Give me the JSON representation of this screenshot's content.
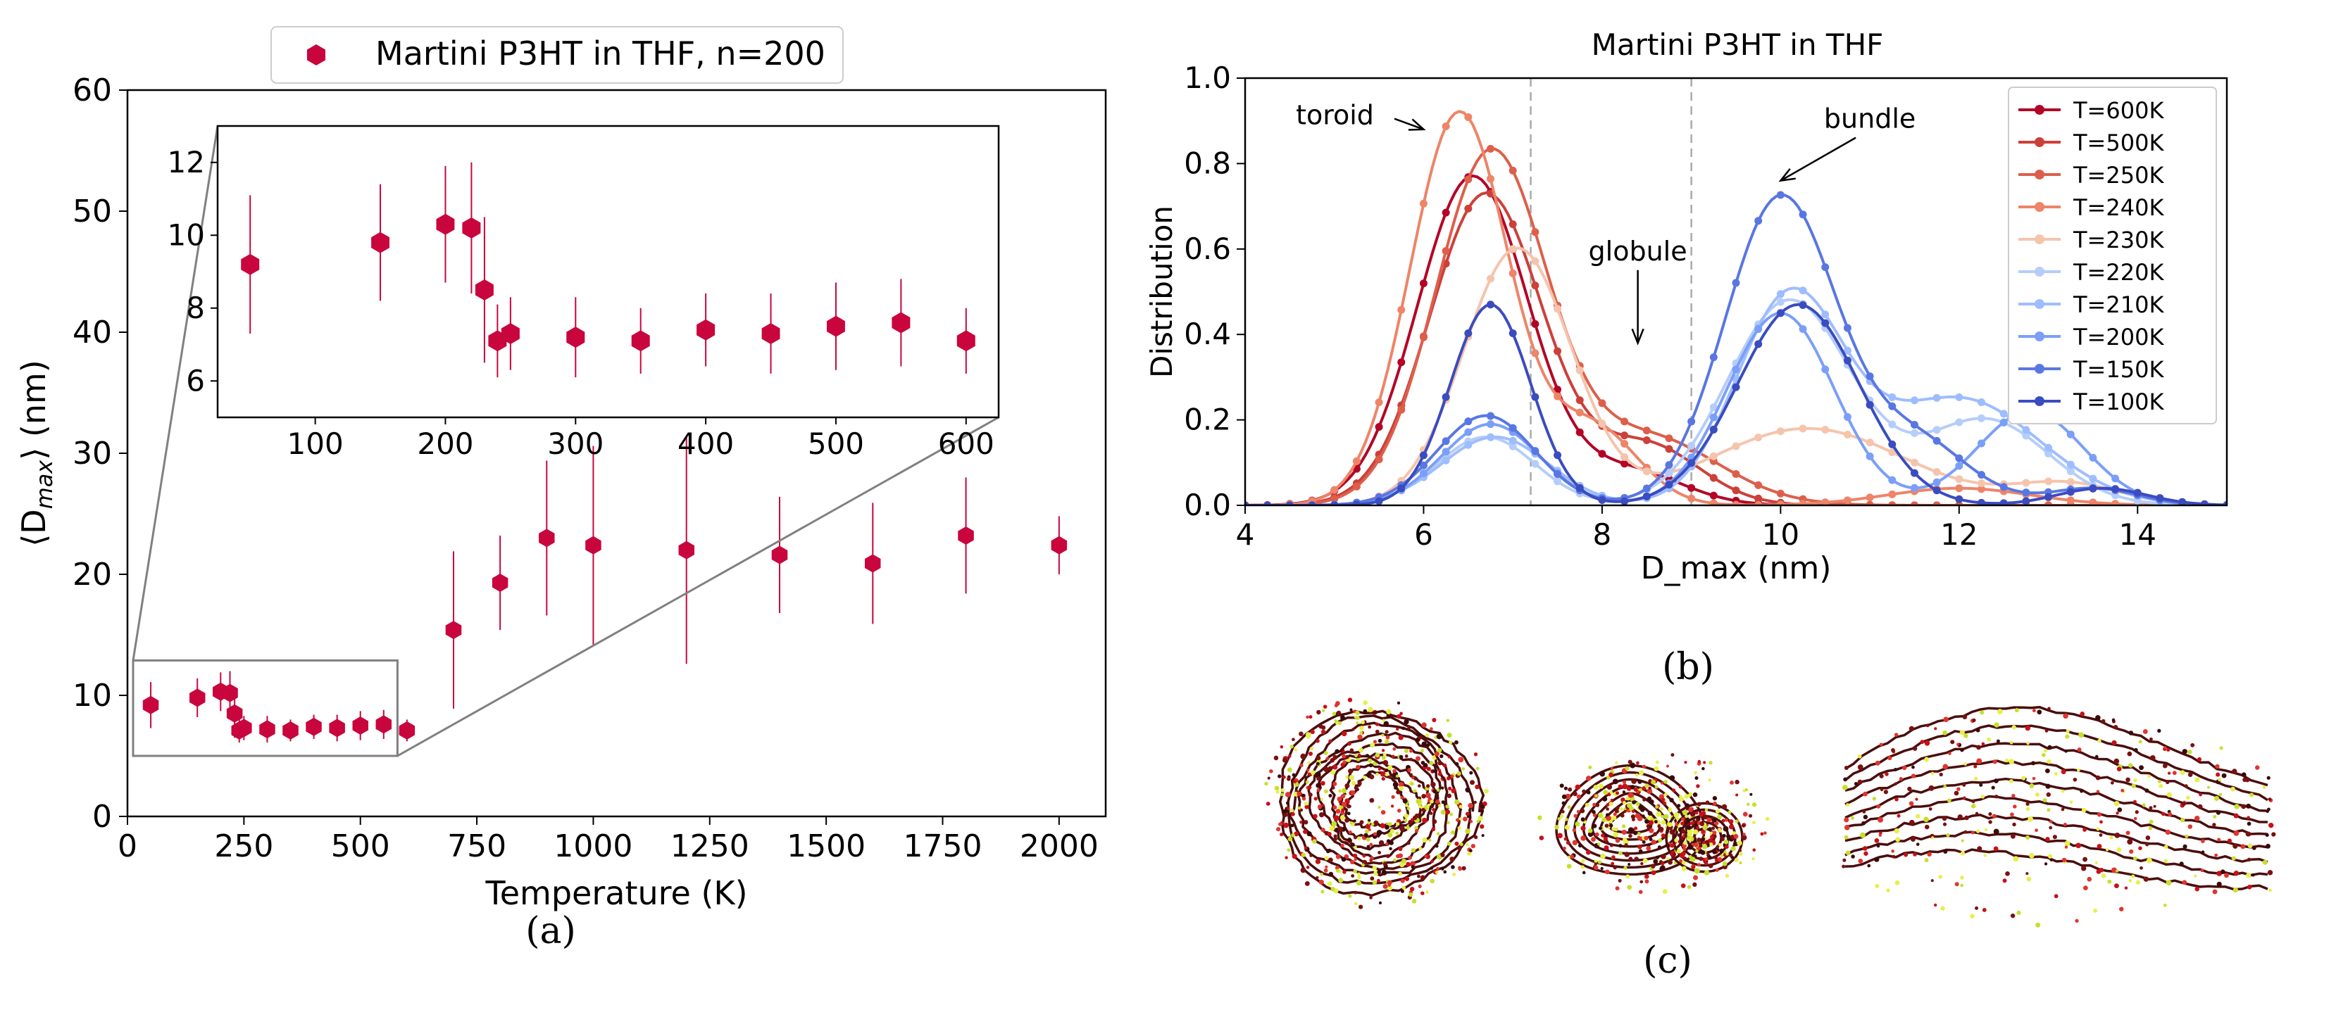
{
  "chart_data": [
    {
      "id": "a",
      "type": "scatter",
      "panel_label": "(a)",
      "legend_label": "Martini P3HT in THF, n=200",
      "xlabel": "Temperature (K)",
      "ylabel": "⟨D",
      "ylabel_sub": "max",
      "ylabel_tail": "⟩ (nm)",
      "xlim": [
        0,
        2100
      ],
      "ylim": [
        0,
        60
      ],
      "xticks": [
        0,
        250,
        500,
        750,
        1000,
        1250,
        1500,
        1750,
        2000
      ],
      "yticks": [
        0,
        10,
        20,
        30,
        40,
        50,
        60
      ],
      "marker_color": "#c8063d",
      "points": [
        {
          "x": 50,
          "y": 9.2,
          "err": 1.9
        },
        {
          "x": 150,
          "y": 9.8,
          "err": 1.6
        },
        {
          "x": 200,
          "y": 10.3,
          "err": 1.6
        },
        {
          "x": 220,
          "y": 10.2,
          "err": 1.8
        },
        {
          "x": 230,
          "y": 8.5,
          "err": 2.0
        },
        {
          "x": 240,
          "y": 7.1,
          "err": 1.0
        },
        {
          "x": 250,
          "y": 7.3,
          "err": 1.0
        },
        {
          "x": 300,
          "y": 7.2,
          "err": 1.1
        },
        {
          "x": 350,
          "y": 7.1,
          "err": 0.9
        },
        {
          "x": 400,
          "y": 7.4,
          "err": 1.0
        },
        {
          "x": 450,
          "y": 7.3,
          "err": 1.1
        },
        {
          "x": 500,
          "y": 7.5,
          "err": 1.2
        },
        {
          "x": 550,
          "y": 7.6,
          "err": 1.2
        },
        {
          "x": 600,
          "y": 7.1,
          "err": 0.9
        },
        {
          "x": 700,
          "y": 15.4,
          "err": 6.5
        },
        {
          "x": 800,
          "y": 19.3,
          "err": 3.9
        },
        {
          "x": 900,
          "y": 23.0,
          "err": 6.4
        },
        {
          "x": 1000,
          "y": 22.4,
          "err": 8.2
        },
        {
          "x": 1200,
          "y": 22.0,
          "err": 9.4
        },
        {
          "x": 1400,
          "y": 21.6,
          "err": 4.8
        },
        {
          "x": 1600,
          "y": 20.9,
          "err": 5.0
        },
        {
          "x": 1800,
          "y": 23.2,
          "err": 4.8
        },
        {
          "x": 2000,
          "y": 22.4,
          "err": 2.4
        }
      ],
      "inset": {
        "xlim": [
          25,
          625
        ],
        "ylim": [
          5,
          13
        ],
        "xticks": [
          100,
          200,
          300,
          400,
          500,
          600
        ],
        "yticks": [
          6,
          8,
          10,
          12
        ],
        "zoom_box": {
          "x0": 0,
          "x1": 625,
          "y0": 5,
          "y1": 13
        }
      }
    },
    {
      "id": "b",
      "type": "line",
      "panel_label": "(b)",
      "title": "Martini P3HT in THF",
      "xlabel": "D_max (nm)",
      "ylabel": "Distribution",
      "xlim": [
        4,
        15
      ],
      "ylim": [
        0,
        1.0
      ],
      "xticks": [
        4,
        6,
        8,
        10,
        12,
        14
      ],
      "yticks": [
        0.0,
        0.2,
        0.4,
        0.6,
        0.8,
        1.0
      ],
      "ytick_labels": [
        "0.0",
        "0.2",
        "0.4",
        "0.6",
        "0.8",
        "1.0"
      ],
      "vlines": [
        7.2,
        9.0
      ],
      "annotations": [
        {
          "text": "toroid",
          "x": 5.2,
          "y": 0.9,
          "arrow_to": [
            6.0,
            0.88
          ]
        },
        {
          "text": "globule",
          "x": 8.4,
          "y": 0.6,
          "arrow_to": [
            8.4,
            0.38
          ]
        },
        {
          "text": "bundle",
          "x": 11.0,
          "y": 0.91,
          "arrow_to": [
            10.0,
            0.76
          ]
        }
      ],
      "series": [
        {
          "name": "T=600K",
          "color": "#b40426",
          "comps": [
            [
              0.77,
              6.55,
              0.62
            ],
            [
              0.08,
              8.3,
              0.6
            ]
          ]
        },
        {
          "name": "T=500K",
          "color": "#cc403a",
          "comps": [
            [
              0.73,
              6.7,
              0.63
            ],
            [
              0.14,
              8.5,
              0.6
            ]
          ]
        },
        {
          "name": "T=250K",
          "color": "#dd5f4b",
          "comps": [
            [
              0.82,
              6.75,
              0.62
            ],
            [
              0.16,
              8.5,
              0.8
            ]
          ]
        },
        {
          "name": "T=240K",
          "color": "#ee8468",
          "comps": [
            [
              0.92,
              6.4,
              0.55
            ],
            [
              0.18,
              7.9,
              0.5
            ],
            [
              0.04,
              12.0,
              0.8
            ]
          ]
        },
        {
          "name": "T=230K",
          "color": "#f5c4ac",
          "comps": [
            [
              0.6,
              7.05,
              0.6
            ],
            [
              0.18,
              10.3,
              1.1
            ],
            [
              0.05,
              13.2,
              0.6
            ]
          ]
        },
        {
          "name": "T=220K",
          "color": "#b5cdfa",
          "comps": [
            [
              0.16,
              6.7,
              0.55
            ],
            [
              0.48,
              10.1,
              0.7
            ],
            [
              0.2,
              12.3,
              0.7
            ]
          ]
        },
        {
          "name": "T=210K",
          "color": "#9dbdff",
          "comps": [
            [
              0.16,
              6.8,
              0.6
            ],
            [
              0.48,
              10.1,
              0.6
            ],
            [
              0.25,
              12.0,
              0.9
            ]
          ]
        },
        {
          "name": "T=200K",
          "color": "#7b9ff9",
          "comps": [
            [
              0.19,
              6.75,
              0.55
            ],
            [
              0.45,
              10.0,
              0.6
            ],
            [
              0.22,
              12.8,
              0.6
            ]
          ]
        },
        {
          "name": "T=150K",
          "color": "#5977e3",
          "comps": [
            [
              0.21,
              6.7,
              0.55
            ],
            [
              0.72,
              10.0,
              0.62
            ],
            [
              0.15,
              11.5,
              0.6
            ],
            [
              0.04,
              13.5,
              0.5
            ]
          ]
        },
        {
          "name": "T=100K",
          "color": "#3b4cc0",
          "comps": [
            [
              0.47,
              6.75,
              0.45
            ],
            [
              0.47,
              10.2,
              0.68
            ],
            [
              0.04,
              13.6,
              0.5
            ]
          ]
        }
      ]
    }
  ],
  "panel_c": {
    "label": "(c)",
    "structures": [
      "toroid",
      "globule",
      "bundle"
    ]
  }
}
